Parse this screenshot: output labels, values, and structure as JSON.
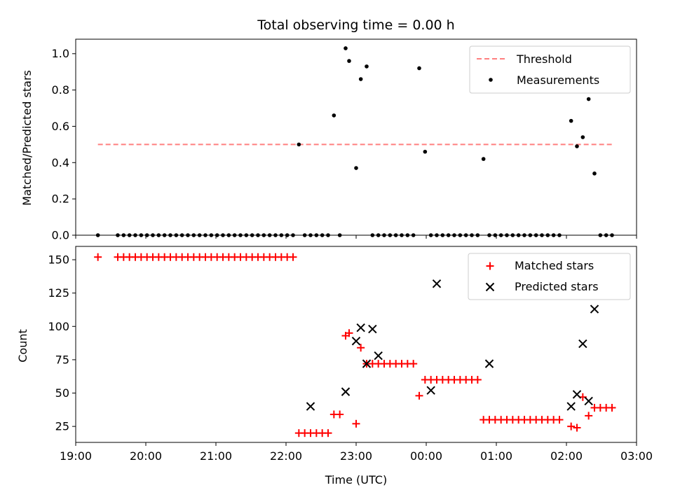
{
  "chart_data": [
    {
      "type": "scatter",
      "title": "Total observing time = 0.00 h",
      "ylabel": "Matched/Predicted stars",
      "xlabel": "",
      "xlim": [
        "19:00",
        "03:00"
      ],
      "ylim": [
        0,
        1.08
      ],
      "yticks": [
        0.0,
        0.2,
        0.4,
        0.6,
        0.8,
        1.0
      ],
      "ytick_labels": [
        "0.0",
        "0.2",
        "0.4",
        "0.6",
        "0.8",
        "1.0"
      ],
      "grid": false,
      "legend_position": "top-right",
      "series": [
        {
          "name": "Threshold",
          "kind": "dashed-line",
          "color": "#ff7f7f",
          "x": [
            "19:19",
            "02:39"
          ],
          "y": [
            0.5,
            0.5
          ]
        },
        {
          "name": "Measurements",
          "kind": "dot",
          "color": "#000000",
          "x": [
            "19:19",
            "19:36",
            "19:41",
            "19:46",
            "19:51",
            "19:56",
            "20:01",
            "20:06",
            "20:11",
            "20:16",
            "20:21",
            "20:26",
            "20:31",
            "20:36",
            "20:41",
            "20:46",
            "20:51",
            "20:56",
            "21:01",
            "21:06",
            "21:11",
            "21:16",
            "21:21",
            "21:26",
            "21:31",
            "21:36",
            "21:41",
            "21:46",
            "21:51",
            "21:56",
            "22:01",
            "22:06",
            "22:11",
            "22:16",
            "22:21",
            "22:26",
            "22:31",
            "22:36",
            "22:41",
            "22:46",
            "22:51",
            "22:54",
            "23:00",
            "23:04",
            "23:09",
            "23:14",
            "23:19",
            "23:24",
            "23:29",
            "23:34",
            "23:39",
            "23:44",
            "23:49",
            "23:54",
            "23:59",
            "00:04",
            "00:09",
            "00:14",
            "00:19",
            "00:24",
            "00:29",
            "00:34",
            "00:39",
            "00:44",
            "00:49",
            "00:54",
            "00:59",
            "01:04",
            "01:09",
            "01:14",
            "01:19",
            "01:24",
            "01:29",
            "01:34",
            "01:39",
            "01:44",
            "01:49",
            "01:54",
            "02:04",
            "02:09",
            "02:14",
            "02:19",
            "02:24",
            "02:29",
            "02:34",
            "02:39"
          ],
          "y": [
            0,
            0,
            0,
            0,
            0,
            0,
            0,
            0,
            0,
            0,
            0,
            0,
            0,
            0,
            0,
            0,
            0,
            0,
            0,
            0,
            0,
            0,
            0,
            0,
            0,
            0,
            0,
            0,
            0,
            0,
            0,
            0,
            0.5,
            0,
            0,
            0,
            0,
            0,
            0.66,
            0,
            1.03,
            0.96,
            0.37,
            0.86,
            0.93,
            0,
            0,
            0,
            0,
            0,
            0,
            0,
            0,
            0.92,
            0.46,
            0,
            0,
            0,
            0,
            0,
            0,
            0,
            0,
            0,
            0.42,
            0,
            0,
            0,
            0,
            0,
            0,
            0,
            0,
            0,
            0,
            0,
            0,
            0,
            0.63,
            0.49,
            0.54,
            0.75,
            0.34,
            0,
            0,
            0
          ]
        }
      ]
    },
    {
      "type": "scatter",
      "title": "",
      "xlabel": "Time (UTC)",
      "ylabel": "Count",
      "xlim": [
        "19:00",
        "03:00"
      ],
      "ylim": [
        13,
        160
      ],
      "xticks": [
        "19:00",
        "20:00",
        "21:00",
        "22:00",
        "23:00",
        "00:00",
        "01:00",
        "02:00",
        "03:00"
      ],
      "yticks": [
        25,
        50,
        75,
        100,
        125,
        150
      ],
      "ytick_labels": [
        "25",
        "50",
        "75",
        "100",
        "125",
        "150"
      ],
      "grid": false,
      "legend_position": "top-right",
      "series": [
        {
          "name": "Matched stars",
          "marker": "plus",
          "color": "#ff0000",
          "x": [
            "19:19",
            "19:36",
            "19:41",
            "19:46",
            "19:51",
            "19:56",
            "20:01",
            "20:06",
            "20:11",
            "20:16",
            "20:21",
            "20:26",
            "20:31",
            "20:36",
            "20:41",
            "20:46",
            "20:51",
            "20:56",
            "21:01",
            "21:06",
            "21:11",
            "21:16",
            "21:21",
            "21:26",
            "21:31",
            "21:36",
            "21:41",
            "21:46",
            "21:51",
            "21:56",
            "22:01",
            "22:06",
            "22:11",
            "22:16",
            "22:21",
            "22:26",
            "22:31",
            "22:36",
            "22:41",
            "22:46",
            "22:51",
            "22:54",
            "23:00",
            "23:04",
            "23:09",
            "23:14",
            "23:19",
            "23:24",
            "23:29",
            "23:34",
            "23:39",
            "23:44",
            "23:49",
            "23:54",
            "23:59",
            "00:04",
            "00:09",
            "00:14",
            "00:19",
            "00:24",
            "00:29",
            "00:34",
            "00:39",
            "00:44",
            "00:49",
            "00:54",
            "00:59",
            "01:04",
            "01:09",
            "01:14",
            "01:19",
            "01:24",
            "01:29",
            "01:34",
            "01:39",
            "01:44",
            "01:49",
            "01:54",
            "02:04",
            "02:09",
            "02:14",
            "02:19",
            "02:24",
            "02:29",
            "02:34",
            "02:39"
          ],
          "y": [
            152,
            152,
            152,
            152,
            152,
            152,
            152,
            152,
            152,
            152,
            152,
            152,
            152,
            152,
            152,
            152,
            152,
            152,
            152,
            152,
            152,
            152,
            152,
            152,
            152,
            152,
            152,
            152,
            152,
            152,
            152,
            152,
            20,
            20,
            20,
            20,
            20,
            20,
            34,
            34,
            93,
            95,
            27,
            84,
            72,
            72,
            72,
            72,
            72,
            72,
            72,
            72,
            72,
            48,
            60,
            60,
            60,
            60,
            60,
            60,
            60,
            60,
            60,
            60,
            30,
            30,
            30,
            30,
            30,
            30,
            30,
            30,
            30,
            30,
            30,
            30,
            30,
            30,
            25,
            24,
            47,
            33,
            39,
            39,
            39,
            39
          ]
        },
        {
          "name": "Predicted stars",
          "marker": "x",
          "color": "#000000",
          "x": [
            "22:21",
            "22:51",
            "23:00",
            "23:04",
            "23:14",
            "23:09",
            "23:19",
            "00:04",
            "00:09",
            "00:54",
            "02:04",
            "02:09",
            "02:14",
            "02:19",
            "02:24"
          ],
          "y": [
            40,
            51,
            89,
            99,
            98,
            72,
            78,
            52,
            132,
            72,
            40,
            49,
            87,
            44,
            113
          ]
        }
      ]
    }
  ]
}
